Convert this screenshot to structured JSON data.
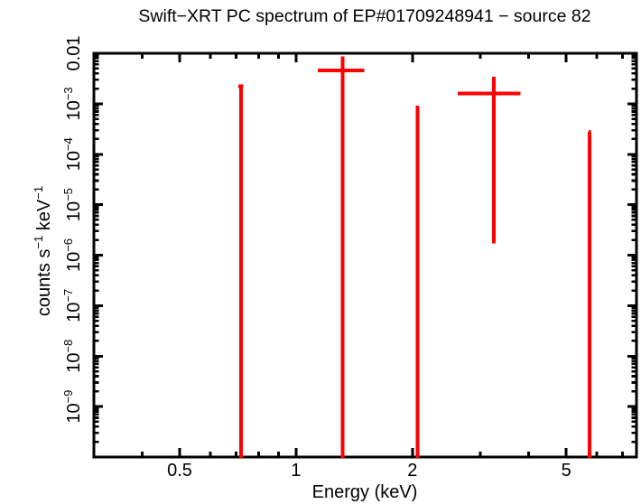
{
  "chart_data": {
    "type": "scatter",
    "title": "Swift−XRT PC spectrum of EP#01709248941 − source 82",
    "xlabel": "Energy (keV)",
    "ylabel_parts": [
      {
        "t": "counts s"
      },
      {
        "sup": "−1"
      },
      {
        "t": " keV"
      },
      {
        "sup": "−1"
      }
    ],
    "x_scale": "log",
    "y_scale": "log",
    "xlim": [
      0.3,
      7.6
    ],
    "ylim": [
      1e-10,
      0.01
    ],
    "grid": false,
    "legend": "none",
    "colors": {
      "data": "#ff0000",
      "axes": "#000000",
      "background": "#ffffff"
    },
    "x_ticks": [
      {
        "v": 0.4
      },
      {
        "v": 0.5,
        "label": "0.5"
      },
      {
        "v": 0.6
      },
      {
        "v": 0.7
      },
      {
        "v": 0.8
      },
      {
        "v": 0.9
      },
      {
        "v": 1,
        "label": "1"
      },
      {
        "v": 2,
        "label": "2"
      },
      {
        "v": 3
      },
      {
        "v": 4
      },
      {
        "v": 5,
        "label": "5"
      },
      {
        "v": 6
      },
      {
        "v": 7
      }
    ],
    "y_ticks": [
      {
        "exp": -2,
        "plain": "0.01"
      },
      {
        "exp": -3,
        "base": "10",
        "sup": "−3"
      },
      {
        "exp": -4,
        "base": "10",
        "sup": "−4"
      },
      {
        "exp": -5,
        "base": "10",
        "sup": "−5"
      },
      {
        "exp": -6,
        "base": "10",
        "sup": "−6"
      },
      {
        "exp": -7,
        "base": "10",
        "sup": "−7"
      },
      {
        "exp": -8,
        "base": "10",
        "sup": "−8"
      },
      {
        "exp": -9,
        "base": "10",
        "sup": "−9"
      }
    ],
    "points": [
      {
        "energy_kev": 0.72,
        "bin_lo": 0.71,
        "bin_hi": 0.73,
        "rate": 0.0022,
        "err_hi": 0.0023,
        "err_lo": null
      },
      {
        "energy_kev": 1.32,
        "bin_lo": 1.14,
        "bin_hi": 1.5,
        "rate": 0.0046,
        "err_hi": 0.0087,
        "err_lo": null
      },
      {
        "energy_kev": 2.06,
        "bin_lo": 2.04,
        "bin_hi": 2.08,
        "rate": 0.00085,
        "err_hi": 0.00085,
        "err_lo": null
      },
      {
        "energy_kev": 3.25,
        "bin_lo": 2.62,
        "bin_hi": 3.81,
        "rate": 0.0016,
        "err_hi": 0.0034,
        "err_lo": 1.7e-06
      },
      {
        "energy_kev": 5.75,
        "bin_lo": 5.71,
        "bin_hi": 5.79,
        "rate": 0.00028,
        "err_hi": 0.00028,
        "err_lo": null
      }
    ],
    "notes": "err_lo null means the lower error bound extends below the plotted y range (bar drawn to plot floor)"
  }
}
